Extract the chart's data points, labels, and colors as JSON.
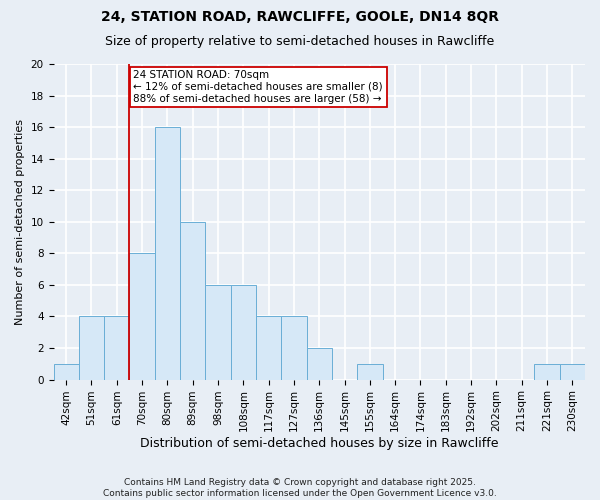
{
  "title1": "24, STATION ROAD, RAWCLIFFE, GOOLE, DN14 8QR",
  "title2": "Size of property relative to semi-detached houses in Rawcliffe",
  "xlabel": "Distribution of semi-detached houses by size in Rawcliffe",
  "ylabel": "Number of semi-detached properties",
  "categories": [
    "42sqm",
    "51sqm",
    "61sqm",
    "70sqm",
    "80sqm",
    "89sqm",
    "98sqm",
    "108sqm",
    "117sqm",
    "127sqm",
    "136sqm",
    "145sqm",
    "155sqm",
    "164sqm",
    "174sqm",
    "183sqm",
    "192sqm",
    "202sqm",
    "211sqm",
    "221sqm",
    "230sqm"
  ],
  "values": [
    1,
    4,
    4,
    8,
    16,
    10,
    6,
    6,
    4,
    4,
    2,
    0,
    1,
    0,
    0,
    0,
    0,
    0,
    0,
    1,
    1
  ],
  "bar_color": "#d6e8f7",
  "bar_edge_color": "#6aaed6",
  "vline_color": "#cc0000",
  "vline_index": 3,
  "annotation_text": "24 STATION ROAD: 70sqm\n← 12% of semi-detached houses are smaller (8)\n88% of semi-detached houses are larger (58) →",
  "annotation_box_color": "#ffffff",
  "annotation_box_edge": "#cc0000",
  "footer": "Contains HM Land Registry data © Crown copyright and database right 2025.\nContains public sector information licensed under the Open Government Licence v3.0.",
  "ylim": [
    0,
    20
  ],
  "yticks": [
    0,
    2,
    4,
    6,
    8,
    10,
    12,
    14,
    16,
    18,
    20
  ],
  "bg_color": "#e8eef5",
  "grid_color": "#ffffff",
  "title1_fontsize": 10,
  "title2_fontsize": 9,
  "xlabel_fontsize": 9,
  "ylabel_fontsize": 8,
  "tick_fontsize": 7.5,
  "annotation_fontsize": 7.5,
  "footer_fontsize": 6.5
}
